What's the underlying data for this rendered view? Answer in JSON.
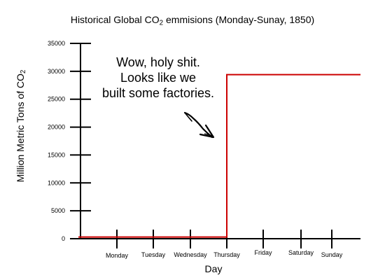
{
  "title": {
    "pre": "Historical Global CO",
    "sub": "2",
    "post": " emmisions (Monday-Sunay, 1850)"
  },
  "annotation": {
    "lines": [
      "Wow, holy shit.",
      "Looks like we",
      "built some factories."
    ],
    "arrow_icon": "hand-drawn-arrow-icon"
  },
  "chart_data": {
    "type": "line",
    "xlabel": "Day",
    "ylabel": {
      "pre": "Million Metric Tons of CO",
      "sub": "2"
    },
    "categories": [
      "Monday",
      "Tuesday",
      "Wednesday",
      "Thursday",
      "Friday",
      "Saturday",
      "Sunday"
    ],
    "yticks": [
      0,
      5000,
      10000,
      15000,
      20000,
      25000,
      30000,
      35000
    ],
    "ylim": [
      0,
      35000
    ],
    "series": [
      {
        "color": "#cc0000",
        "points": [
          {
            "x": "start",
            "y": 300
          },
          {
            "x": "Thursday",
            "y": 300
          },
          {
            "x": "Thursday",
            "y": 29400
          },
          {
            "x": "end",
            "y": 29400
          }
        ]
      }
    ],
    "grid": false
  }
}
